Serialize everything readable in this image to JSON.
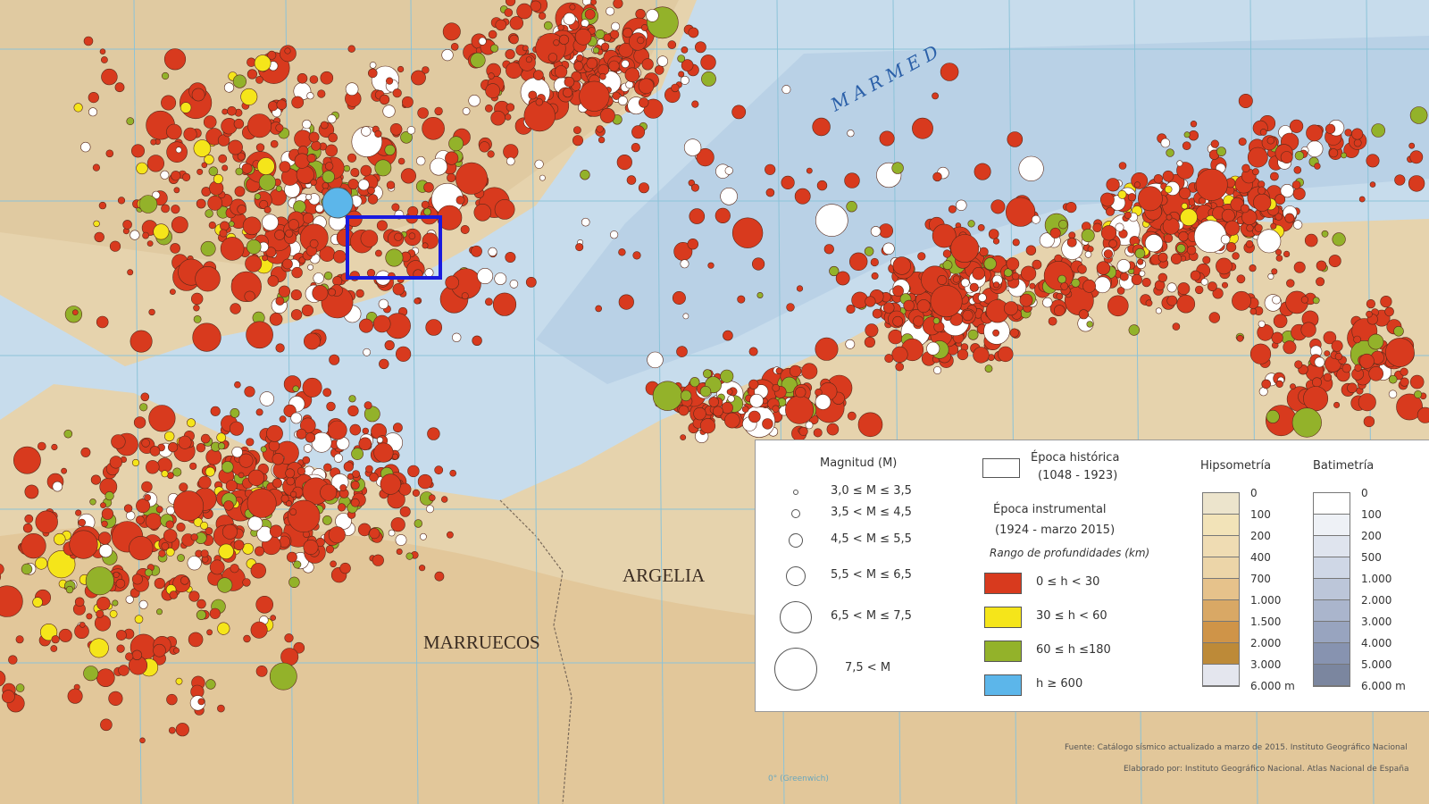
{
  "map_labels": {
    "sea": "M A R   M E D",
    "country_1": "ARGELIA",
    "country_2": "MARRUECOS",
    "meridian": "0° (Greenwich)"
  },
  "legend": {
    "magnitude_title": "Magnitud (M)",
    "magnitudes": [
      "3,0 ≤ M ≤ 3,5",
      "3,5 < M ≤ 4,5",
      "4,5 < M ≤ 5,5",
      "5,5 < M ≤ 6,5",
      "6,5 < M ≤ 7,5",
      "7,5 < M"
    ],
    "historic_title": "Época histórica",
    "historic_range": "(1048 - 1923)",
    "instrumental_title": "Época instrumental",
    "instrumental_range": "(1924 - marzo 2015)",
    "depth_title": "Rango de profundidades (km)",
    "depths": [
      {
        "label": "0 ≤ h < 30",
        "color": "#d83a1e"
      },
      {
        "label": "30 ≤ h < 60",
        "color": "#f5e51a"
      },
      {
        "label": "60 ≤ h ≤180",
        "color": "#93b22a"
      },
      {
        "label": "h ≥ 600",
        "color": "#5cb6ea"
      }
    ],
    "hypsometry_title": "Hipsometría",
    "hypsometry_ticks": [
      "0",
      "100",
      "200",
      "400",
      "700",
      "1.000",
      "1.500",
      "2.000",
      "3.000",
      "6.000 m"
    ],
    "hypsometry_colors": [
      "#ece4cc",
      "#f2e3b8",
      "#efdcb3",
      "#ecd5a8",
      "#e6c28b",
      "#d9a865",
      "#cf9448",
      "#bd8a38",
      "#e4e6ee"
    ],
    "bathymetry_title": "Batimetría",
    "bathymetry_ticks": [
      "0",
      "100",
      "200",
      "500",
      "1.000",
      "2.000",
      "3.000",
      "4.000",
      "5.000",
      "6.000 m"
    ],
    "bathymetry_colors": [
      "#ffffff",
      "#eef1f6",
      "#dfe4ee",
      "#cfd7e6",
      "#bcc6d9",
      "#aab5cc",
      "#98a4bf",
      "#8793b0",
      "#7b869f"
    ]
  },
  "source": "Fuente: Catálogo sísmico actualizado a marzo de 2015. Instituto Geográfico Nacional",
  "credits": "Elaborado por: Instituto Geográfico Nacional. Atlas Nacional de España",
  "colors": {
    "land": "#e9d9b8",
    "sea": "#c9dcea",
    "grid": "#8cc3d8",
    "highlight": "#1a1adf",
    "historic": "#ffffff"
  }
}
